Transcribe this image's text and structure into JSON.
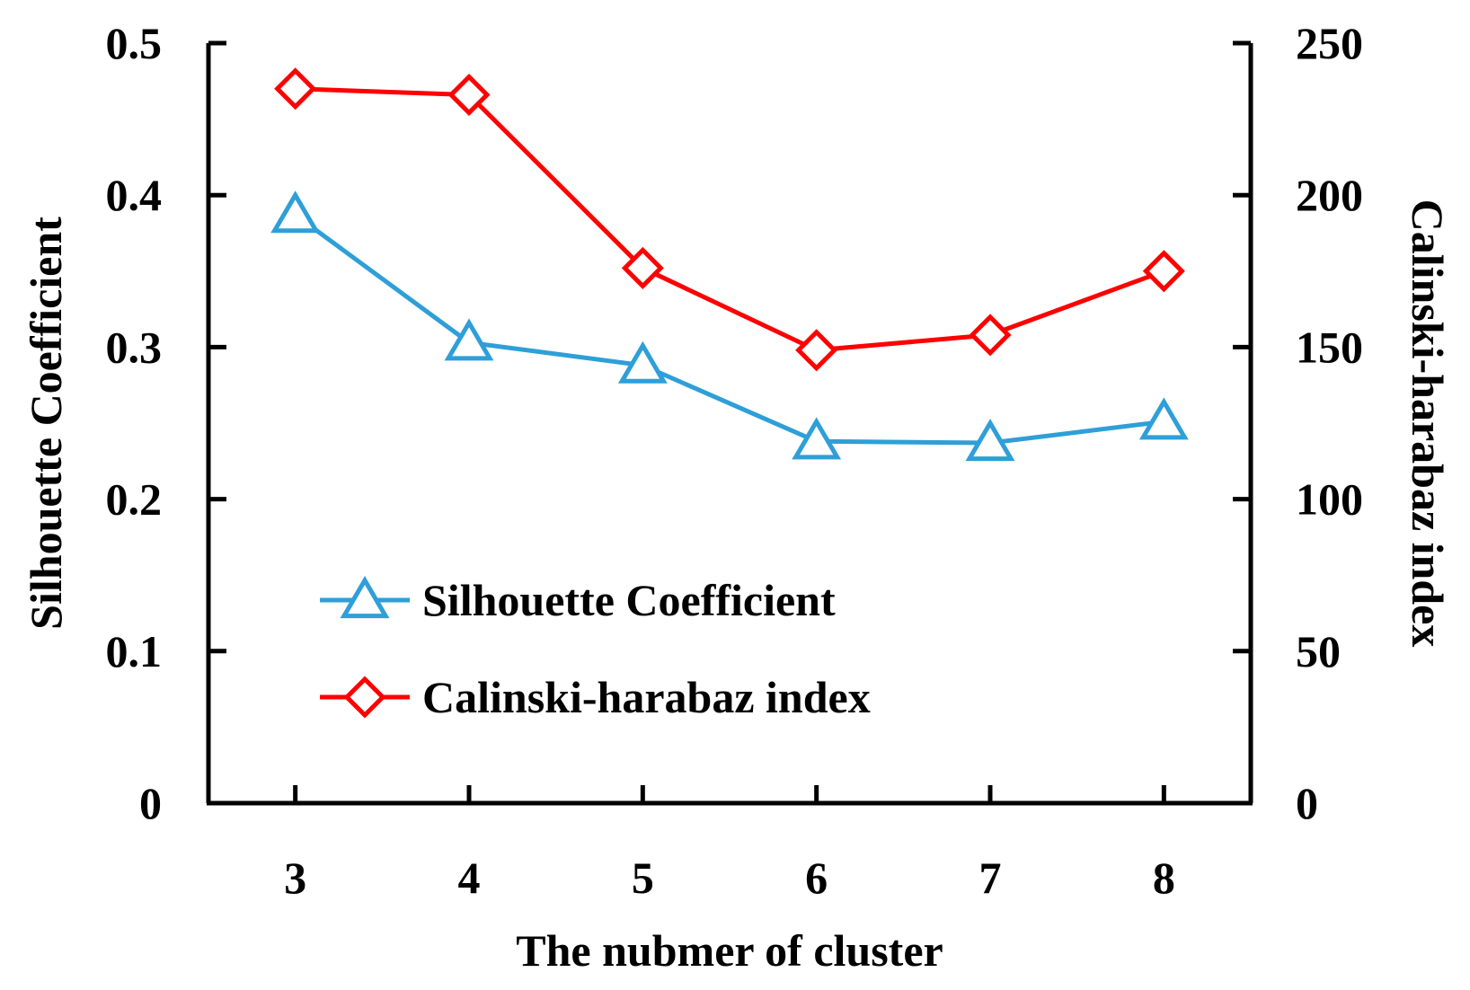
{
  "chart_data": {
    "type": "line",
    "title": "",
    "x": [
      3,
      4,
      5,
      6,
      7,
      8
    ],
    "xlabel": "The nubmer of cluster",
    "ylabel_left": "Silhouette Coefficient",
    "ylabel_right": "Calinski-harabaz index",
    "ylim_left": [
      0,
      0.5
    ],
    "ylim_right": [
      0,
      250
    ],
    "yticks_left": [
      "0",
      "0.1",
      "0.2",
      "0.3",
      "0.4",
      "0.5"
    ],
    "yticks_right": [
      "0",
      "50",
      "100",
      "150",
      "200",
      "250"
    ],
    "grid": false,
    "legend_position": "bottom-left",
    "series": [
      {
        "name": "Silhouette Coefficient",
        "axis": "left",
        "marker": "triangle",
        "color": "#2e9fd8",
        "values": [
          0.387,
          0.303,
          0.288,
          0.238,
          0.237,
          0.251
        ]
      },
      {
        "name": "Calinski-harabaz index",
        "axis": "right",
        "marker": "diamond",
        "color": "#ff0000",
        "values": [
          235,
          233,
          176,
          149,
          154,
          175
        ]
      }
    ]
  }
}
